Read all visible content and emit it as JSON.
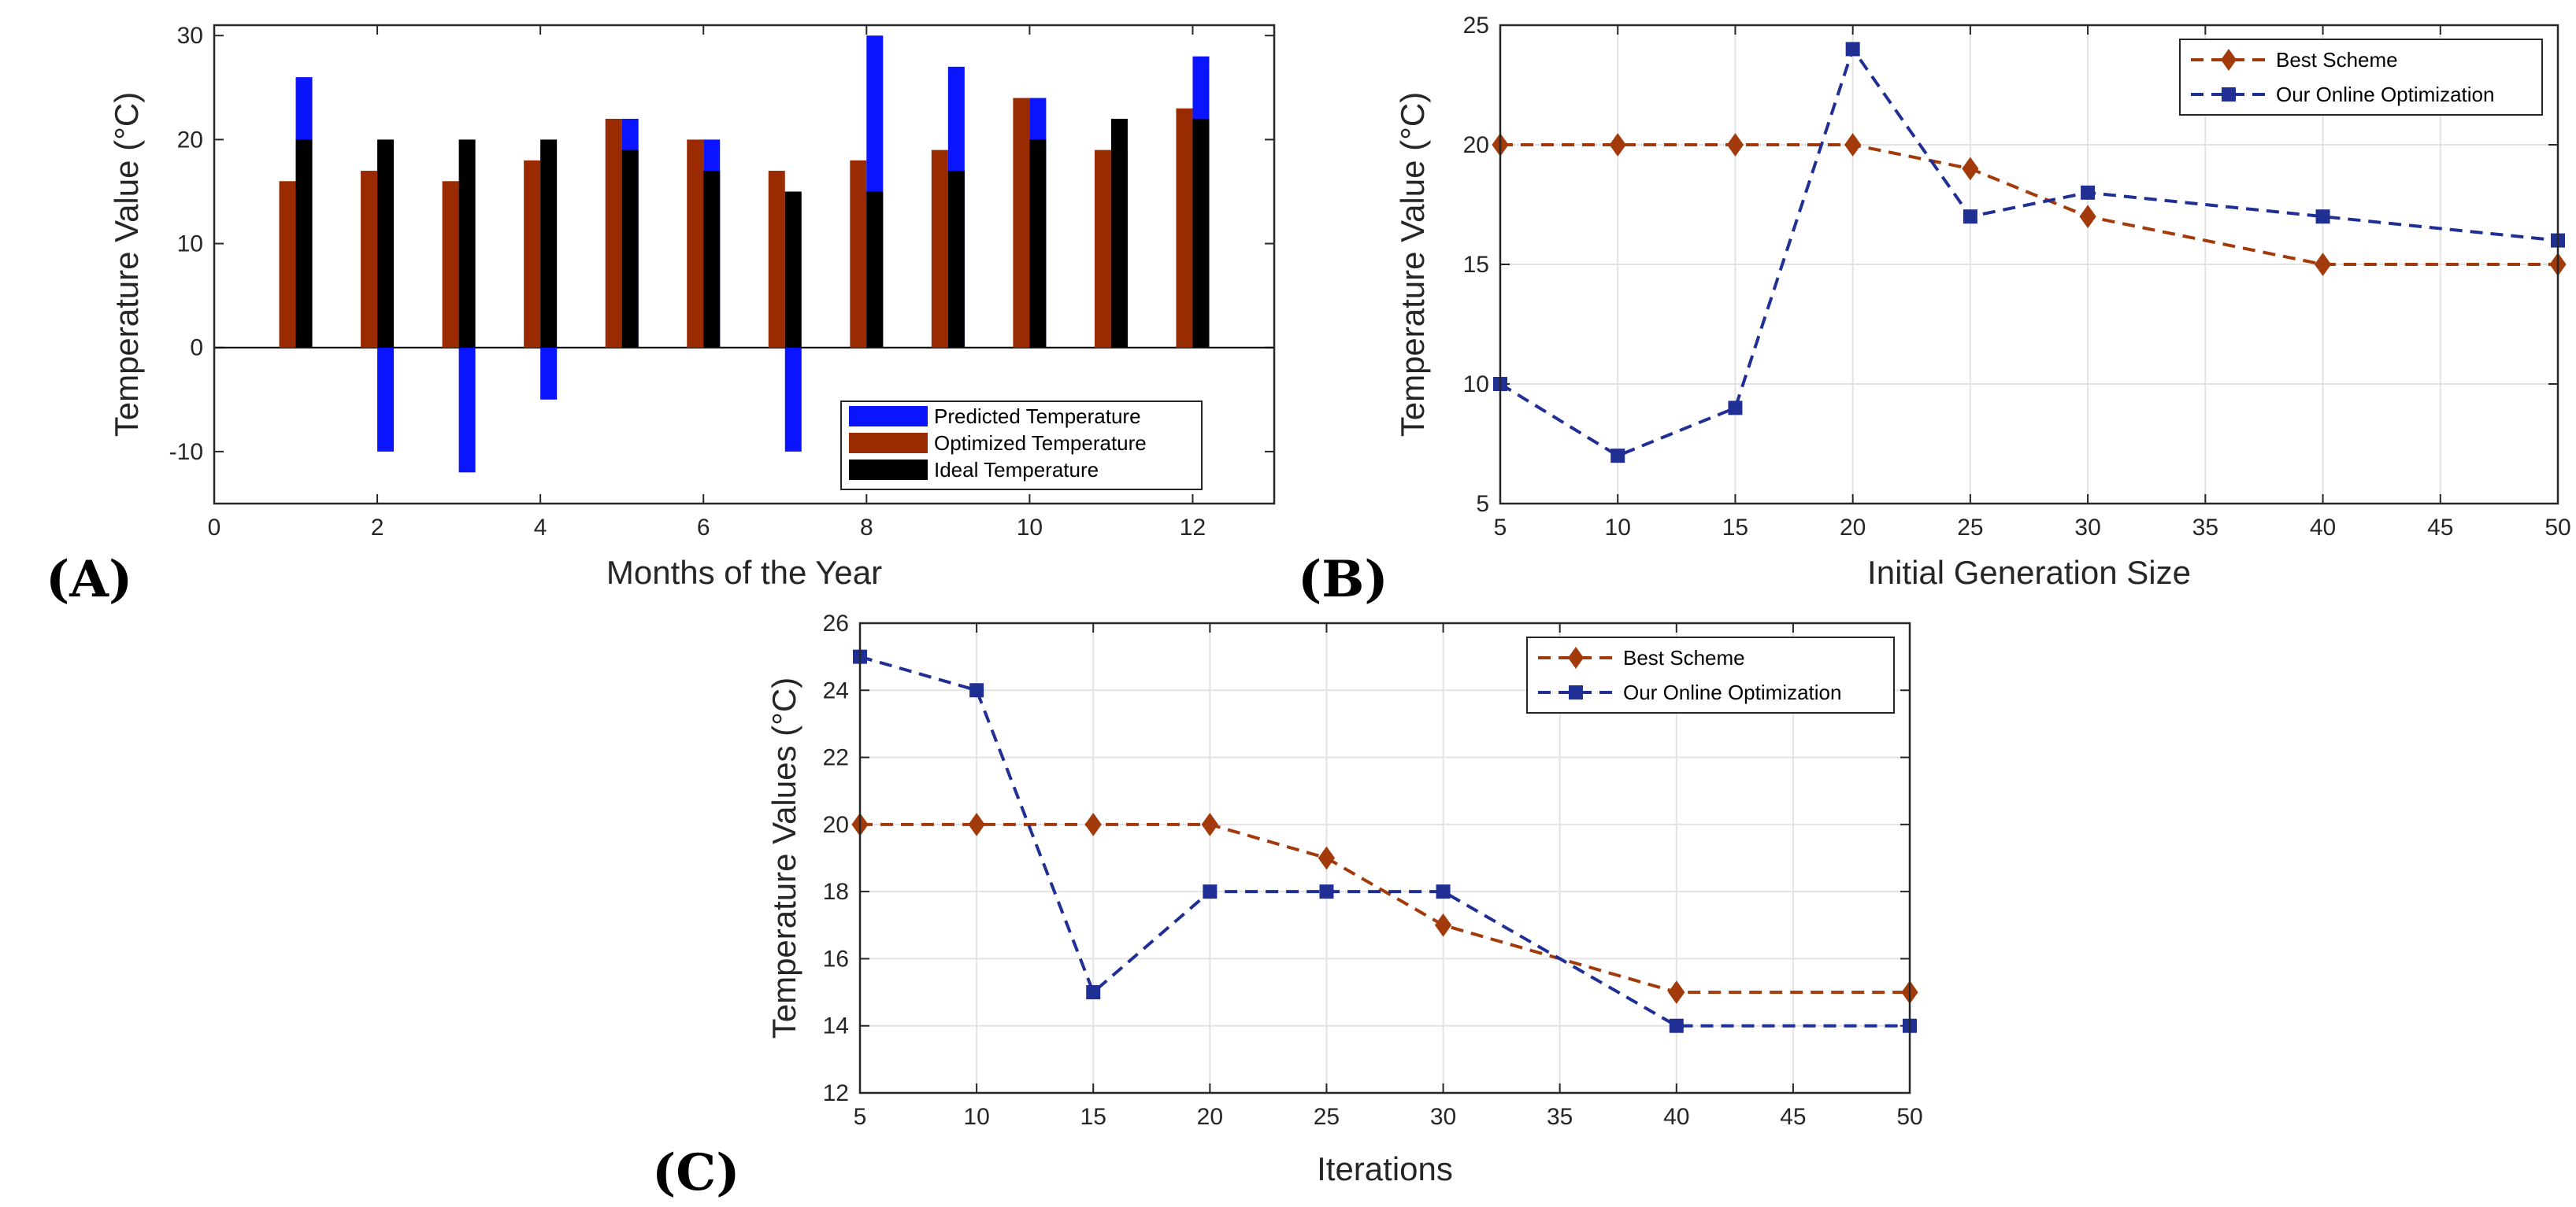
{
  "colors": {
    "predicted": "#0a14ff",
    "optimized": "#9a2a00",
    "ideal": "#000000",
    "best_scheme": "#a33a0b",
    "online": "#1f2f94",
    "grid": "#e3e3e3",
    "axis": "#262626"
  },
  "chart_data": [
    {
      "id": "A",
      "panel_label": "(A)",
      "type": "bar",
      "title": "",
      "xlabel": "Months of the Year",
      "ylabel": "Temperature Value (°C)",
      "xlim": [
        0,
        13
      ],
      "ylim": [
        -15,
        31
      ],
      "xticks": [
        0,
        2,
        4,
        6,
        8,
        10,
        12
      ],
      "yticks": [
        -10,
        0,
        10,
        20,
        30
      ],
      "grid": false,
      "legend_position": "bottom-right",
      "categories": [
        1,
        2,
        3,
        4,
        5,
        6,
        7,
        8,
        9,
        10,
        11,
        12
      ],
      "series": [
        {
          "name": "Predicted Temperature",
          "color_key": "predicted",
          "values": [
            26,
            -10,
            -12,
            -5,
            22,
            20,
            -10,
            30,
            27,
            24,
            19,
            28
          ]
        },
        {
          "name": "Optimized Temperature",
          "color_key": "optimized",
          "values": [
            16,
            17,
            16,
            18,
            22,
            20,
            17,
            18,
            19,
            24,
            19,
            23
          ]
        },
        {
          "name": "Ideal Temperature",
          "color_key": "ideal",
          "values": [
            20,
            20,
            20,
            20,
            19,
            17,
            15,
            15,
            17,
            20,
            22,
            22
          ]
        }
      ]
    },
    {
      "id": "B",
      "panel_label": "(B)",
      "type": "line",
      "title": "",
      "xlabel": "Initial Generation Size",
      "ylabel": "Temperature Value (°C)",
      "xlim": [
        5,
        50
      ],
      "ylim": [
        5,
        25
      ],
      "xticks": [
        5,
        10,
        15,
        20,
        25,
        30,
        35,
        40,
        45,
        50
      ],
      "yticks": [
        5,
        10,
        15,
        20,
        25
      ],
      "grid": true,
      "legend_position": "top-right",
      "series": [
        {
          "name": "Best Scheme",
          "color_key": "best_scheme",
          "marker": "diamond",
          "x": [
            5,
            10,
            15,
            20,
            25,
            30,
            40,
            50
          ],
          "y": [
            20,
            20,
            20,
            20,
            19,
            17,
            15,
            15
          ]
        },
        {
          "name": "Our Online Optimization",
          "color_key": "online",
          "marker": "square",
          "x": [
            5,
            10,
            15,
            20,
            25,
            30,
            40,
            50
          ],
          "y": [
            10,
            7,
            9,
            24,
            17,
            18,
            17,
            16
          ]
        }
      ]
    },
    {
      "id": "C",
      "panel_label": "(C)",
      "type": "line",
      "title": "",
      "xlabel": "Iterations",
      "ylabel": "Temperature Values (°C)",
      "xlim": [
        5,
        50
      ],
      "ylim": [
        12,
        26
      ],
      "xticks": [
        5,
        10,
        15,
        20,
        25,
        30,
        35,
        40,
        45,
        50
      ],
      "yticks": [
        12,
        14,
        16,
        18,
        20,
        22,
        24,
        26
      ],
      "grid": true,
      "legend_position": "top-right",
      "series": [
        {
          "name": "Best Scheme",
          "color_key": "best_scheme",
          "marker": "diamond",
          "x": [
            5,
            10,
            15,
            20,
            25,
            30,
            40,
            50
          ],
          "y": [
            20,
            20,
            20,
            20,
            19,
            17,
            15,
            15
          ]
        },
        {
          "name": "Our Online Optimization",
          "color_key": "online",
          "marker": "square",
          "x": [
            5,
            10,
            15,
            20,
            25,
            30,
            40,
            50
          ],
          "y": [
            25,
            24,
            15,
            18,
            18,
            18,
            14,
            14
          ]
        }
      ]
    }
  ]
}
